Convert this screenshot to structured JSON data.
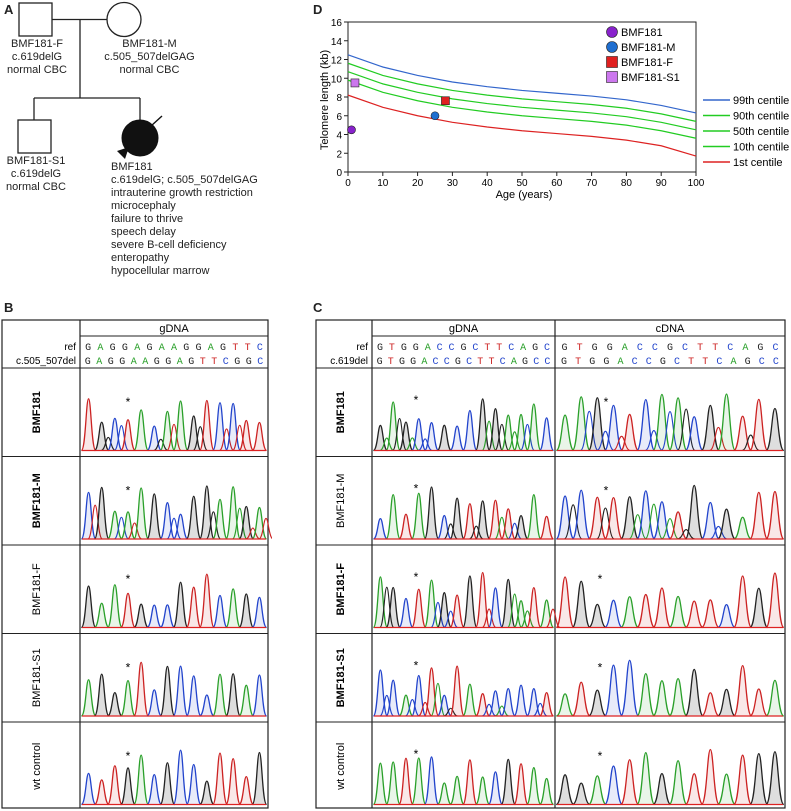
{
  "panel_labels": {
    "A": "A",
    "B": "B",
    "C": "C",
    "D": "D"
  },
  "pedigree": {
    "father": {
      "name": "BMF181-F",
      "genotype": "c.619delG",
      "phenotype": "normal CBC"
    },
    "mother": {
      "name": "BMF181-M",
      "genotype": "c.505_507delGAG",
      "phenotype": "normal CBC"
    },
    "sibling": {
      "name": "BMF181-S1",
      "genotype": "c.619delG",
      "phenotype": "normal CBC"
    },
    "proband": {
      "name": "BMF181",
      "genotype": "c.619delG; c.505_507delGAG",
      "features": [
        "intrauterine growth restriction",
        "microcephaly",
        "failure to thrive",
        "speech delay",
        "severe B-cell deficiency",
        "enteropathy",
        "hypocellular marrow"
      ]
    }
  },
  "panelB": {
    "header": "gDNA",
    "ref_label": "ref",
    "mut_label": "c.505_507del",
    "ref_seq": "GAGGAGAAGGAGTTC",
    "mut_seq": "GAGGAAGGAGTTCGGC",
    "rows": [
      {
        "name": "BMF181",
        "bold": true
      },
      {
        "name": "BMF181-M",
        "bold": true
      },
      {
        "name": "BMF181-F",
        "bold": false
      },
      {
        "name": "BMF181-S1",
        "bold": false
      },
      {
        "name": "wt control",
        "bold": false
      }
    ],
    "star": "*"
  },
  "panelC": {
    "headers": [
      "gDNA",
      "cDNA"
    ],
    "ref_label": "ref",
    "mut_label": "c.619del",
    "ref_seq": "GTGGACCGCTTCAGC",
    "mut_seq": "GTGGACCGCTTCAGCC",
    "rows": [
      {
        "name": "BMF181",
        "bold": true
      },
      {
        "name": "BMF181-M",
        "bold": false
      },
      {
        "name": "BMF181-F",
        "bold": true
      },
      {
        "name": "BMF181-S1",
        "bold": true
      },
      {
        "name": "wt control",
        "bold": false
      }
    ],
    "star": "*"
  },
  "base_colors": {
    "A": "#2aa02a",
    "G": "#222222",
    "C": "#2244cc",
    "T": "#cc2222"
  },
  "chart_data": {
    "type": "line",
    "title": "",
    "xlabel": "Age (years)",
    "ylabel": "Telomere length (kb)",
    "xlim": [
      0,
      100
    ],
    "ylim": [
      0,
      16
    ],
    "xticks": [
      0,
      10,
      20,
      30,
      40,
      50,
      60,
      70,
      80,
      90,
      100
    ],
    "yticks": [
      0,
      2,
      4,
      6,
      8,
      10,
      12,
      14,
      16
    ],
    "series": [
      {
        "name": "99th centile",
        "color": "#3366cc",
        "x": [
          0,
          10,
          20,
          30,
          40,
          50,
          60,
          70,
          80,
          90,
          100
        ],
        "values": [
          12.5,
          11.2,
          10.3,
          9.6,
          9.1,
          8.7,
          8.4,
          8.1,
          7.7,
          7.1,
          6.3
        ]
      },
      {
        "name": "90th centile",
        "color": "#22cc22",
        "x": [
          0,
          10,
          20,
          30,
          40,
          50,
          60,
          70,
          80,
          90,
          100
        ],
        "values": [
          11.6,
          10.3,
          9.4,
          8.7,
          8.2,
          7.8,
          7.5,
          7.2,
          6.8,
          6.2,
          5.4
        ]
      },
      {
        "name": "50th centile",
        "color": "#22cc22",
        "x": [
          0,
          10,
          20,
          30,
          40,
          50,
          60,
          70,
          80,
          90,
          100
        ],
        "values": [
          10.7,
          9.4,
          8.5,
          7.8,
          7.3,
          6.9,
          6.6,
          6.3,
          5.9,
          5.3,
          4.5
        ]
      },
      {
        "name": "10th centile",
        "color": "#22cc22",
        "x": [
          0,
          10,
          20,
          30,
          40,
          50,
          60,
          70,
          80,
          90,
          100
        ],
        "values": [
          9.8,
          8.5,
          7.6,
          6.9,
          6.4,
          6.0,
          5.7,
          5.4,
          5.0,
          4.4,
          3.6
        ]
      },
      {
        "name": "1st centile",
        "color": "#dd2222",
        "x": [
          0,
          10,
          20,
          30,
          40,
          50,
          60,
          70,
          80,
          90,
          100
        ],
        "values": [
          8.2,
          6.9,
          6.0,
          5.3,
          4.8,
          4.4,
          4.1,
          3.8,
          3.4,
          2.8,
          1.7
        ]
      }
    ],
    "points": [
      {
        "name": "BMF181",
        "x": 1,
        "y": 4.5,
        "color": "#8822cc",
        "shape": "circle"
      },
      {
        "name": "BMF181-M",
        "x": 25,
        "y": 6.0,
        "color": "#1f6fd0",
        "shape": "circle"
      },
      {
        "name": "BMF181-F",
        "x": 28,
        "y": 7.6,
        "color": "#e02020",
        "shape": "square"
      },
      {
        "name": "BMF181-S1",
        "x": 2,
        "y": 9.5,
        "color": "#cc77ee",
        "shape": "square"
      }
    ]
  }
}
